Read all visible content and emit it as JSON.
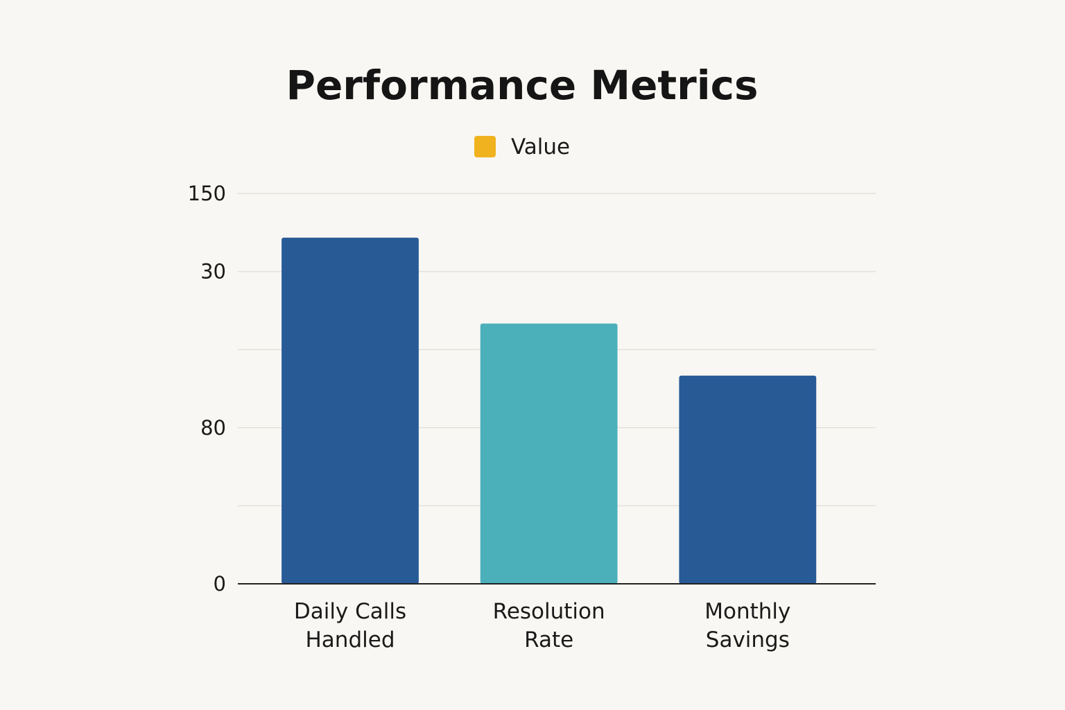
{
  "chart_data": {
    "type": "bar",
    "title": "Performance Metrics",
    "xlabel": "",
    "ylabel": "",
    "legend": {
      "entries": [
        {
          "label": "Value",
          "color": "#f0b21f"
        }
      ],
      "position": "top-center"
    },
    "categories": [
      [
        "Daily Calls",
        "Handled"
      ],
      [
        "Resolution",
        "Rate"
      ],
      [
        "Monthly",
        "Savings"
      ]
    ],
    "series": [
      {
        "name": "Value",
        "values": [
          133,
          100,
          80
        ]
      }
    ],
    "bar_colors": [
      "#285a96",
      "#4cb0bb",
      "#285a96"
    ],
    "y_tick_labels": [
      "0",
      "",
      "80",
      "",
      "30",
      "150"
    ],
    "ylim": [
      0,
      150
    ],
    "grid": true
  }
}
